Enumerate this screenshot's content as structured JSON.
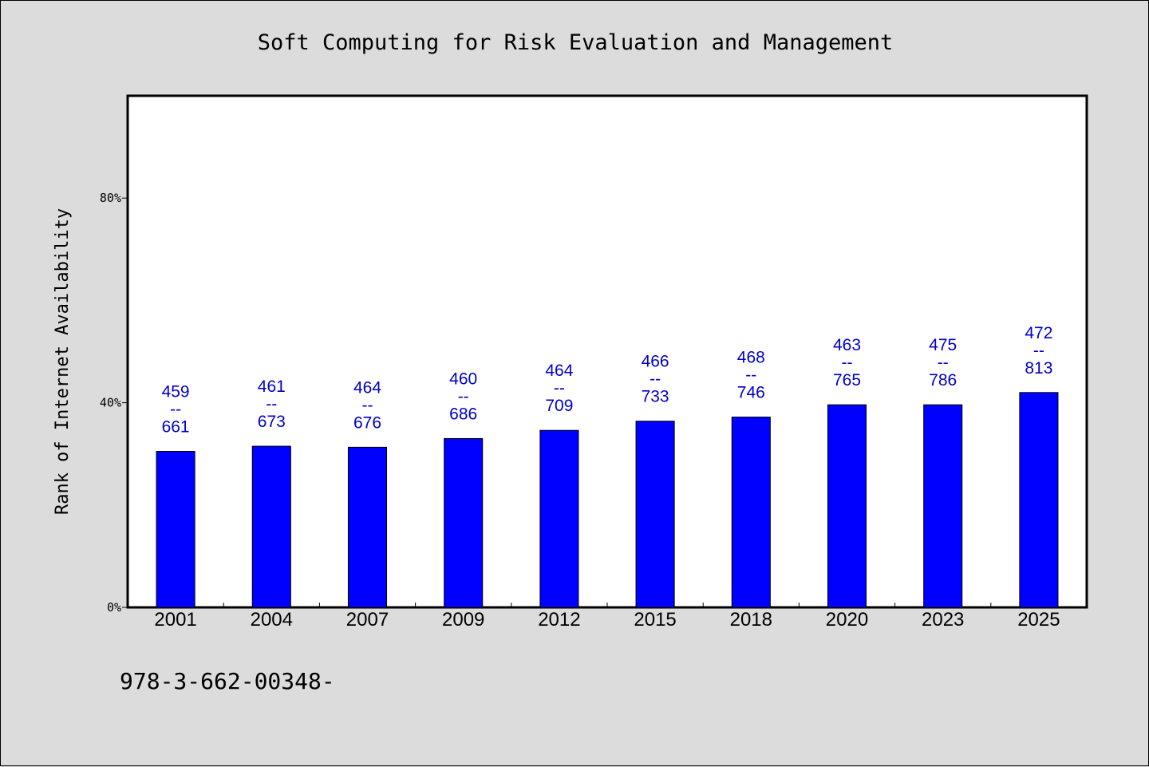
{
  "chart_data": {
    "type": "bar",
    "title": "Soft Computing for Risk Evaluation and Management",
    "ylabel": "Rank of Internet Availability",
    "xlabel": "",
    "ylim": [
      0,
      100
    ],
    "yticks": [
      {
        "value": 0,
        "label": "0%"
      },
      {
        "value": 40,
        "label": "40%"
      },
      {
        "value": 80,
        "label": "80%"
      }
    ],
    "categories": [
      "2001",
      "2004",
      "2007",
      "2009",
      "2012",
      "2015",
      "2018",
      "2020",
      "2023",
      "2025"
    ],
    "values": [
      30.5,
      31.5,
      31.3,
      33.0,
      34.6,
      36.4,
      37.2,
      39.6,
      39.6,
      42.0
    ],
    "data_labels": [
      {
        "top": "459",
        "mid": "--",
        "bottom": "661"
      },
      {
        "top": "461",
        "mid": "--",
        "bottom": "673"
      },
      {
        "top": "464",
        "mid": "--",
        "bottom": "676"
      },
      {
        "top": "460",
        "mid": "--",
        "bottom": "686"
      },
      {
        "top": "464",
        "mid": "--",
        "bottom": "709"
      },
      {
        "top": "466",
        "mid": "--",
        "bottom": "733"
      },
      {
        "top": "468",
        "mid": "--",
        "bottom": "746"
      },
      {
        "top": "463",
        "mid": "--",
        "bottom": "765"
      },
      {
        "top": "475",
        "mid": "--",
        "bottom": "786"
      },
      {
        "top": "472",
        "mid": "--",
        "bottom": "813"
      }
    ],
    "grid": false,
    "colors": {
      "bar": "#0000ff",
      "label": "#0000cc",
      "plot_bg": "#ffffff",
      "page_bg": "#dcdcdc"
    }
  },
  "footer": {
    "code": "978-3-662-00348-"
  }
}
